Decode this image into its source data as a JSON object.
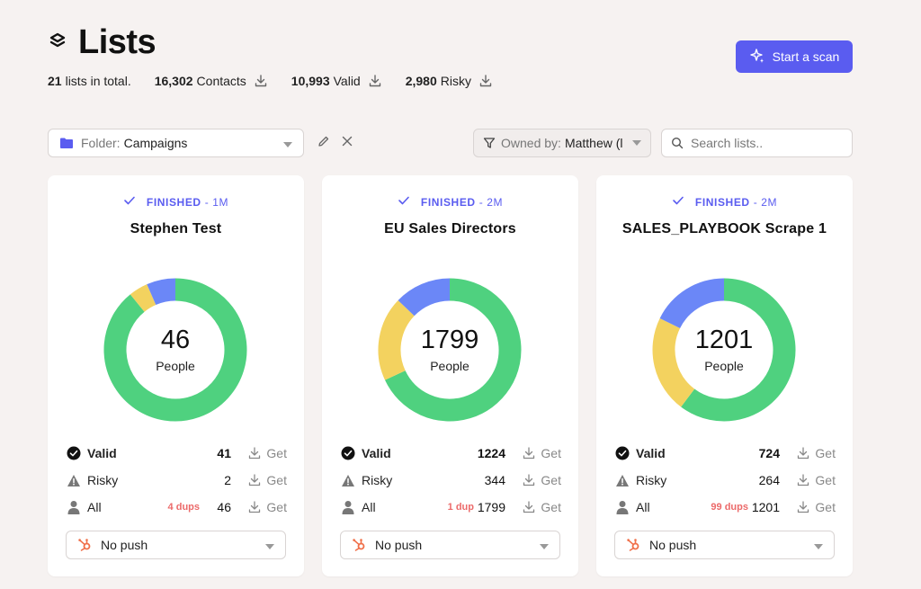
{
  "header": {
    "title": "Lists",
    "total_count": "21",
    "total_label": "lists in total.",
    "stats": [
      {
        "value": "16,302",
        "label": "Contacts"
      },
      {
        "value": "10,993",
        "label": "Valid"
      },
      {
        "value": "2,980",
        "label": "Risky"
      }
    ],
    "scan_button": "Start a scan"
  },
  "filters": {
    "folder_prefix": "Folder:",
    "folder_value": "Campaigns",
    "owner_prefix": "Owned by:",
    "owner_value": "Matthew (l",
    "search_placeholder": "Search lists.."
  },
  "colors": {
    "accent": "#5a5cf0",
    "valid": "#4fd17f",
    "risky": "#f3d25f",
    "unknown": "#6b87f7",
    "dups": "#ec6a6a"
  },
  "cards": [
    {
      "status": "FINISHED",
      "age": "- 1M",
      "title": "Stephen Test",
      "total": "46",
      "people_label": "People",
      "chart": {
        "valid": 41,
        "risky": 2,
        "other": 3
      },
      "rows": [
        {
          "label": "Valid",
          "dups": "",
          "count": "41",
          "get": "Get"
        },
        {
          "label": "Risky",
          "dups": "",
          "count": "2",
          "get": "Get"
        },
        {
          "label": "All",
          "dups": "4 dups",
          "count": "46",
          "get": "Get"
        }
      ],
      "push": "No push"
    },
    {
      "status": "FINISHED",
      "age": "- 2M",
      "title": "EU Sales Directors",
      "total": "1799",
      "people_label": "People",
      "chart": {
        "valid": 1224,
        "risky": 344,
        "other": 231
      },
      "rows": [
        {
          "label": "Valid",
          "dups": "",
          "count": "1224",
          "get": "Get"
        },
        {
          "label": "Risky",
          "dups": "",
          "count": "344",
          "get": "Get"
        },
        {
          "label": "All",
          "dups": "1 dup",
          "count": "1799",
          "get": "Get"
        }
      ],
      "push": "No push"
    },
    {
      "status": "FINISHED",
      "age": "- 2M",
      "title": "SALES_PLAYBOOK Scrape 1",
      "total": "1201",
      "people_label": "People",
      "chart": {
        "valid": 724,
        "risky": 264,
        "other": 213
      },
      "rows": [
        {
          "label": "Valid",
          "dups": "",
          "count": "724",
          "get": "Get"
        },
        {
          "label": "Risky",
          "dups": "",
          "count": "264",
          "get": "Get"
        },
        {
          "label": "All",
          "dups": "99 dups",
          "count": "1201",
          "get": "Get"
        }
      ],
      "push": "No push"
    }
  ]
}
